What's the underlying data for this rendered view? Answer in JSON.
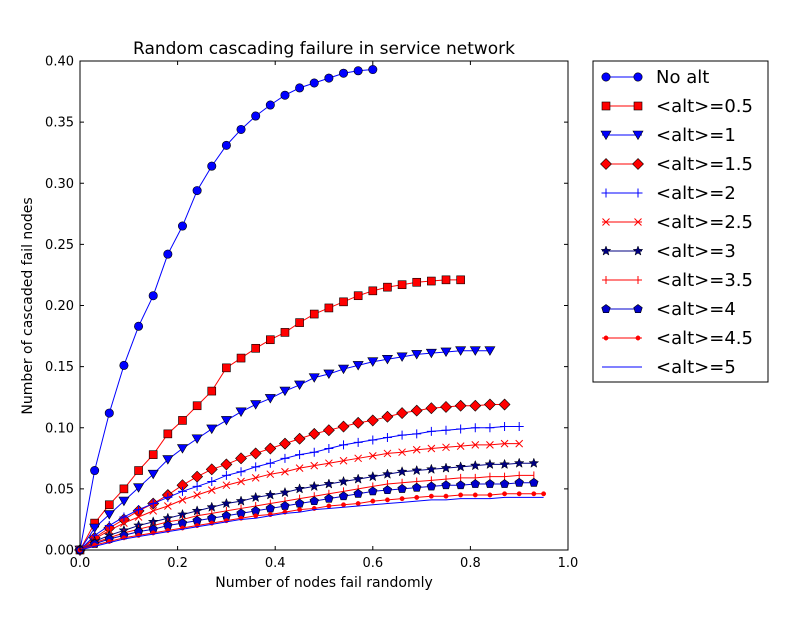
{
  "chart_data": {
    "type": "line",
    "title": "Random cascading failure in service network",
    "xlabel": "Number of nodes fail randomly",
    "ylabel": "Number of cascaded fail nodes",
    "xlim": [
      0.0,
      1.0
    ],
    "ylim": [
      0.0,
      0.4
    ],
    "x_ticks": [
      "0.0",
      "0.2",
      "0.4",
      "0.6",
      "0.8",
      "1.0"
    ],
    "y_ticks": [
      "0.00",
      "0.05",
      "0.10",
      "0.15",
      "0.20",
      "0.25",
      "0.30",
      "0.35",
      "0.40"
    ],
    "x_tick_values": [
      0.0,
      0.2,
      0.4,
      0.6,
      0.8,
      1.0
    ],
    "y_tick_values": [
      0.0,
      0.05,
      0.1,
      0.15,
      0.2,
      0.25,
      0.3,
      0.35,
      0.4
    ],
    "grid": false,
    "legend_position": "outside-right",
    "series": [
      {
        "name": "No alt",
        "color": "#0000ff",
        "marker": "circle",
        "x": [
          0.0,
          0.03,
          0.06,
          0.09,
          0.12,
          0.15,
          0.18,
          0.21,
          0.24,
          0.27,
          0.3,
          0.33,
          0.36,
          0.39,
          0.42,
          0.45,
          0.48,
          0.51,
          0.54,
          0.57,
          0.6
        ],
        "y": [
          0.0,
          0.065,
          0.112,
          0.151,
          0.183,
          0.208,
          0.242,
          0.265,
          0.294,
          0.314,
          0.331,
          0.344,
          0.355,
          0.364,
          0.372,
          0.378,
          0.382,
          0.386,
          0.39,
          0.392,
          0.393
        ]
      },
      {
        "name": "<alt>=0.5",
        "color": "#ff0000",
        "marker": "square",
        "x": [
          0.0,
          0.03,
          0.06,
          0.09,
          0.12,
          0.15,
          0.18,
          0.21,
          0.24,
          0.27,
          0.3,
          0.33,
          0.36,
          0.39,
          0.42,
          0.45,
          0.48,
          0.51,
          0.54,
          0.57,
          0.6,
          0.63,
          0.66,
          0.69,
          0.72,
          0.75,
          0.78
        ],
        "y": [
          0.0,
          0.022,
          0.037,
          0.05,
          0.065,
          0.078,
          0.095,
          0.106,
          0.118,
          0.13,
          0.149,
          0.157,
          0.165,
          0.172,
          0.178,
          0.186,
          0.193,
          0.198,
          0.203,
          0.208,
          0.212,
          0.215,
          0.217,
          0.219,
          0.22,
          0.221,
          0.221
        ]
      },
      {
        "name": "<alt>=1",
        "color": "#0000ff",
        "marker": "triangle-down",
        "x": [
          0.0,
          0.03,
          0.06,
          0.09,
          0.12,
          0.15,
          0.18,
          0.21,
          0.24,
          0.27,
          0.3,
          0.33,
          0.36,
          0.39,
          0.42,
          0.45,
          0.48,
          0.51,
          0.54,
          0.57,
          0.6,
          0.63,
          0.66,
          0.69,
          0.72,
          0.75,
          0.78,
          0.81,
          0.84
        ],
        "y": [
          0.0,
          0.018,
          0.029,
          0.04,
          0.051,
          0.062,
          0.074,
          0.083,
          0.091,
          0.099,
          0.106,
          0.113,
          0.119,
          0.124,
          0.13,
          0.135,
          0.141,
          0.144,
          0.148,
          0.151,
          0.154,
          0.156,
          0.158,
          0.16,
          0.161,
          0.162,
          0.163,
          0.163,
          0.163
        ]
      },
      {
        "name": "<alt>=1.5",
        "color": "#ff0000",
        "marker": "diamond",
        "x": [
          0.0,
          0.03,
          0.06,
          0.09,
          0.12,
          0.15,
          0.18,
          0.21,
          0.24,
          0.27,
          0.3,
          0.33,
          0.36,
          0.39,
          0.42,
          0.45,
          0.48,
          0.51,
          0.54,
          0.57,
          0.6,
          0.63,
          0.66,
          0.69,
          0.72,
          0.75,
          0.78,
          0.81,
          0.84,
          0.87
        ],
        "y": [
          0.0,
          0.01,
          0.018,
          0.025,
          0.032,
          0.038,
          0.045,
          0.053,
          0.06,
          0.066,
          0.07,
          0.075,
          0.079,
          0.083,
          0.087,
          0.091,
          0.095,
          0.098,
          0.101,
          0.104,
          0.106,
          0.109,
          0.112,
          0.114,
          0.116,
          0.117,
          0.118,
          0.118,
          0.119,
          0.119
        ]
      },
      {
        "name": "<alt>=2",
        "color": "#0000ff",
        "marker": "plus",
        "x": [
          0.0,
          0.03,
          0.06,
          0.09,
          0.12,
          0.15,
          0.18,
          0.21,
          0.24,
          0.27,
          0.3,
          0.33,
          0.36,
          0.39,
          0.42,
          0.45,
          0.48,
          0.51,
          0.54,
          0.57,
          0.6,
          0.63,
          0.66,
          0.69,
          0.72,
          0.75,
          0.78,
          0.81,
          0.84,
          0.87,
          0.9
        ],
        "y": [
          0.0,
          0.012,
          0.02,
          0.027,
          0.033,
          0.038,
          0.043,
          0.048,
          0.052,
          0.056,
          0.061,
          0.064,
          0.068,
          0.071,
          0.075,
          0.078,
          0.08,
          0.083,
          0.086,
          0.088,
          0.09,
          0.092,
          0.094,
          0.095,
          0.097,
          0.098,
          0.099,
          0.1,
          0.1,
          0.101,
          0.101
        ]
      },
      {
        "name": "<alt>=2.5",
        "color": "#ff0000",
        "marker": "x",
        "x": [
          0.0,
          0.03,
          0.06,
          0.09,
          0.12,
          0.15,
          0.18,
          0.21,
          0.24,
          0.27,
          0.3,
          0.33,
          0.36,
          0.39,
          0.42,
          0.45,
          0.48,
          0.51,
          0.54,
          0.57,
          0.6,
          0.63,
          0.66,
          0.69,
          0.72,
          0.75,
          0.78,
          0.81,
          0.84,
          0.87,
          0.9
        ],
        "y": [
          0.0,
          0.009,
          0.016,
          0.022,
          0.027,
          0.032,
          0.036,
          0.041,
          0.045,
          0.049,
          0.053,
          0.056,
          0.059,
          0.062,
          0.064,
          0.067,
          0.069,
          0.071,
          0.073,
          0.075,
          0.077,
          0.079,
          0.08,
          0.082,
          0.083,
          0.084,
          0.085,
          0.086,
          0.086,
          0.087,
          0.087
        ]
      },
      {
        "name": "<alt>=3",
        "color": "#000080",
        "marker": "star",
        "x": [
          0.0,
          0.03,
          0.06,
          0.09,
          0.12,
          0.15,
          0.18,
          0.21,
          0.24,
          0.27,
          0.3,
          0.33,
          0.36,
          0.39,
          0.42,
          0.45,
          0.48,
          0.51,
          0.54,
          0.57,
          0.6,
          0.63,
          0.66,
          0.69,
          0.72,
          0.75,
          0.78,
          0.81,
          0.84,
          0.87,
          0.9,
          0.93
        ],
        "y": [
          0.0,
          0.007,
          0.012,
          0.016,
          0.02,
          0.023,
          0.026,
          0.029,
          0.032,
          0.035,
          0.038,
          0.04,
          0.043,
          0.045,
          0.047,
          0.05,
          0.052,
          0.054,
          0.056,
          0.058,
          0.06,
          0.062,
          0.064,
          0.065,
          0.066,
          0.067,
          0.068,
          0.069,
          0.07,
          0.07,
          0.071,
          0.071
        ]
      },
      {
        "name": "<alt>=3.5",
        "color": "#ff0000",
        "marker": "vline",
        "x": [
          0.0,
          0.03,
          0.06,
          0.09,
          0.12,
          0.15,
          0.18,
          0.21,
          0.24,
          0.27,
          0.3,
          0.33,
          0.36,
          0.39,
          0.42,
          0.45,
          0.48,
          0.51,
          0.54,
          0.57,
          0.6,
          0.63,
          0.66,
          0.69,
          0.72,
          0.75,
          0.78,
          0.81,
          0.84,
          0.87,
          0.9,
          0.93
        ],
        "y": [
          0.0,
          0.006,
          0.01,
          0.014,
          0.017,
          0.02,
          0.023,
          0.025,
          0.028,
          0.03,
          0.032,
          0.034,
          0.036,
          0.038,
          0.04,
          0.042,
          0.044,
          0.046,
          0.048,
          0.05,
          0.052,
          0.054,
          0.055,
          0.056,
          0.057,
          0.058,
          0.059,
          0.059,
          0.06,
          0.06,
          0.061,
          0.061
        ]
      },
      {
        "name": "<alt>=4",
        "color": "#0000cc",
        "marker": "pentagon",
        "x": [
          0.0,
          0.03,
          0.06,
          0.09,
          0.12,
          0.15,
          0.18,
          0.21,
          0.24,
          0.27,
          0.3,
          0.33,
          0.36,
          0.39,
          0.42,
          0.45,
          0.48,
          0.51,
          0.54,
          0.57,
          0.6,
          0.63,
          0.66,
          0.69,
          0.72,
          0.75,
          0.78,
          0.81,
          0.84,
          0.87,
          0.9,
          0.93
        ],
        "y": [
          0.0,
          0.005,
          0.009,
          0.012,
          0.015,
          0.017,
          0.02,
          0.022,
          0.024,
          0.026,
          0.028,
          0.03,
          0.032,
          0.034,
          0.036,
          0.038,
          0.04,
          0.042,
          0.044,
          0.046,
          0.048,
          0.049,
          0.05,
          0.051,
          0.052,
          0.053,
          0.053,
          0.054,
          0.054,
          0.054,
          0.055,
          0.055
        ]
      },
      {
        "name": "<alt>=4.5",
        "color": "#ff0000",
        "marker": "dot",
        "x": [
          0.0,
          0.03,
          0.06,
          0.09,
          0.12,
          0.15,
          0.18,
          0.21,
          0.24,
          0.27,
          0.3,
          0.33,
          0.36,
          0.39,
          0.42,
          0.45,
          0.48,
          0.51,
          0.54,
          0.57,
          0.6,
          0.63,
          0.66,
          0.69,
          0.72,
          0.75,
          0.78,
          0.81,
          0.84,
          0.87,
          0.9,
          0.93,
          0.95
        ],
        "y": [
          0.0,
          0.004,
          0.007,
          0.01,
          0.012,
          0.014,
          0.016,
          0.018,
          0.02,
          0.022,
          0.024,
          0.026,
          0.028,
          0.029,
          0.031,
          0.033,
          0.034,
          0.036,
          0.037,
          0.038,
          0.04,
          0.041,
          0.042,
          0.043,
          0.044,
          0.044,
          0.045,
          0.045,
          0.045,
          0.046,
          0.046,
          0.046,
          0.046
        ]
      },
      {
        "name": "<alt>=5",
        "color": "#0000ff",
        "marker": "none",
        "x": [
          0.0,
          0.03,
          0.06,
          0.09,
          0.12,
          0.15,
          0.18,
          0.21,
          0.24,
          0.27,
          0.3,
          0.33,
          0.36,
          0.39,
          0.42,
          0.45,
          0.48,
          0.51,
          0.54,
          0.57,
          0.6,
          0.63,
          0.66,
          0.69,
          0.72,
          0.75,
          0.78,
          0.81,
          0.84,
          0.87,
          0.9,
          0.93,
          0.95
        ],
        "y": [
          0.0,
          0.003,
          0.006,
          0.009,
          0.011,
          0.013,
          0.015,
          0.017,
          0.019,
          0.021,
          0.023,
          0.025,
          0.026,
          0.028,
          0.03,
          0.031,
          0.033,
          0.034,
          0.035,
          0.036,
          0.037,
          0.038,
          0.039,
          0.04,
          0.041,
          0.041,
          0.042,
          0.042,
          0.042,
          0.043,
          0.043,
          0.043,
          0.043
        ]
      }
    ]
  }
}
